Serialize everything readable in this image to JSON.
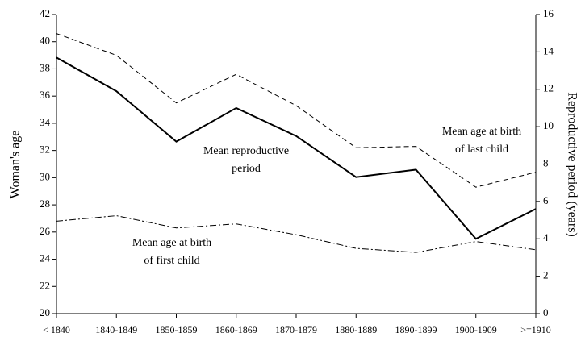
{
  "chart_data": {
    "type": "line",
    "ylabel": "Woman's age",
    "y2label": "Reproductive period (years)",
    "categories": [
      "< 1840",
      "1840-1849",
      "1850-1859",
      "1860-1869",
      "1870-1879",
      "1880-1889",
      "1890-1899",
      "1900-1909",
      ">=1910"
    ],
    "ylim": [
      20,
      42
    ],
    "yticks": [
      20,
      22,
      24,
      26,
      28,
      30,
      32,
      34,
      36,
      38,
      40,
      42
    ],
    "y2lim": [
      0,
      16
    ],
    "y2ticks": [
      0,
      2,
      4,
      6,
      8,
      10,
      12,
      14,
      16
    ],
    "series": [
      {
        "label": [
          "Mean age at birth",
          "of last child"
        ],
        "color": "#000000",
        "dash": "6,4",
        "width": 1,
        "values": [
          40.6,
          39.0,
          35.5,
          37.6,
          35.3,
          32.2,
          32.3,
          29.3,
          30.4
        ]
      },
      {
        "label": [
          "Mean reproductive",
          "period"
        ],
        "color": "#000000",
        "dash": "none",
        "width": 2,
        "axis": "y2",
        "values": [
          13.7,
          11.9,
          9.2,
          11.0,
          9.5,
          7.3,
          7.7,
          4.0,
          5.6
        ]
      },
      {
        "label": [
          "Mean age at birth",
          "of first child"
        ],
        "color": "#000000",
        "dash": "8,3,2,3",
        "width": 1,
        "values": [
          26.8,
          27.2,
          26.3,
          26.6,
          25.8,
          24.8,
          24.5,
          25.3,
          24.7
        ]
      }
    ]
  }
}
